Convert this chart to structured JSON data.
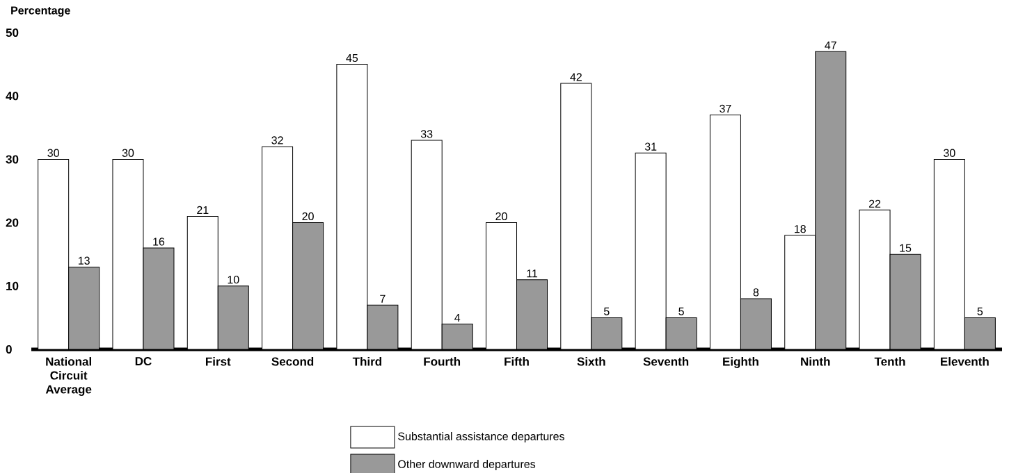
{
  "chart_data": {
    "type": "bar",
    "ylabel": "Percentage",
    "categories": [
      "National Circuit Average",
      "DC",
      "First",
      "Second",
      "Third",
      "Fourth",
      "Fifth",
      "Sixth",
      "Seventh",
      "Eighth",
      "Ninth",
      "Tenth",
      "Eleventh"
    ],
    "series": [
      {
        "name": "Substantial assistance departures",
        "color": "#ffffff",
        "values": [
          30,
          30,
          21,
          32,
          45,
          33,
          20,
          42,
          31,
          37,
          18,
          22,
          30
        ]
      },
      {
        "name": "Other downward departures",
        "color": "#999999",
        "values": [
          13,
          16,
          10,
          20,
          7,
          4,
          11,
          5,
          5,
          8,
          47,
          15,
          5
        ]
      }
    ],
    "ylim": [
      0,
      50
    ],
    "yticks": [
      0,
      10,
      20,
      30,
      40,
      50
    ],
    "data_labels": true,
    "legend": "bottom"
  }
}
